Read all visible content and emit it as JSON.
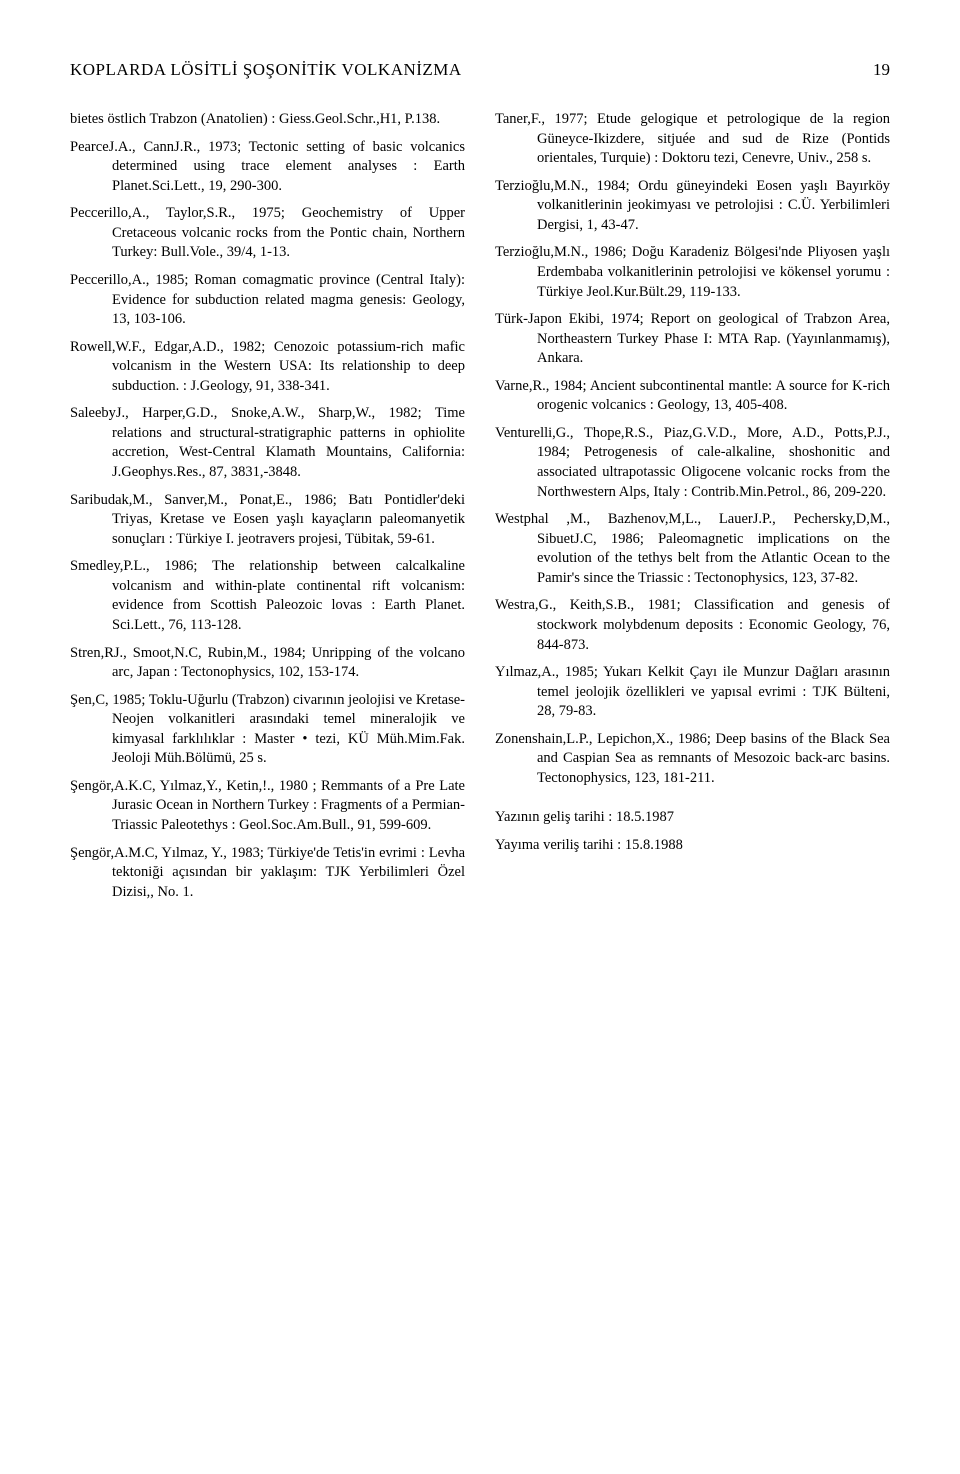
{
  "header": {
    "running_title": "KOPLARDA LÖSİTLİ ŞOŞONİTİK VOLKANİZMA",
    "page_number": "19"
  },
  "left_column": [
    "bietes östlich Trabzon (Anatolien) : Giess.Geol.Schr.,H1, P.138.",
    "PearceJ.A., CannJ.R., 1973; Tectonic setting of basic volcanics determined using trace element analyses : Earth Planet.Sci.Lett., 19, 290-300.",
    "Peccerillo,A., Taylor,S.R., 1975; Geochemistry of Upper Cretaceous volcanic rocks from the Pontic chain, Northern Turkey: Bull.Vole., 39/4, 1-13.",
    "Peccerillo,A., 1985; Roman comagmatic province (Central Italy): Evidence for subduction related magma genesis: Geology, 13, 103-106.",
    "Rowell,W.F., Edgar,A.D., 1982; Cenozoic potassium-rich mafic volcanism in the Western USA: Its relationship to deep subduction. : J.Geology, 91, 338-341.",
    "SaleebyJ., Harper,G.D., Snoke,A.W., Sharp,W., 1982; Time relations and structural-stratigraphic patterns in ophiolite accretion, West-Central Klamath Mountains, California: J.Geophys.Res., 87, 3831,-3848.",
    "Saribudak,M., Sanver,M., Ponat,E., 1986; Batı Pontidler'deki Triyas, Kretase ve Eosen yaşlı kayaçların paleomanyetik sonuçları : Türkiye I. jeotravers projesi, Tübitak, 59-61.",
    "Smedley,P.L., 1986; The relationship between calcalkaline volcanism and within-plate continental rift volcanism: evidence from Scottish Paleozoic lovas : Earth Planet. Sci.Lett., 76, 113-128.",
    "Stren,RJ., Smoot,N.C, Rubin,M., 1984; Unripping of the volcano arc, Japan : Tectonophysics, 102, 153-174.",
    "Şen,C, 1985; Toklu-Uğurlu (Trabzon) civarının jeolojisi ve Kretase-Neojen volkanitleri arasındaki temel mineralojik ve kimyasal farklılıklar : Master • tezi, KÜ Müh.Mim.Fak. Jeoloji Müh.Bölümü, 25 s.",
    "Şengör,A.K.C, Yılmaz,Y., Ketin,!., 1980 ; Remmants of a Pre Late Jurasic Ocean in Northern Turkey : Fragments of a Permian-Triassic Paleotethys : Geol.Soc.Am.Bull., 91, 599-609.",
    "Şengör,A.M.C, Yılmaz, Y., 1983; Türkiye'de Tetis'in evrimi : Levha tektoniği açısından bir yaklaşım: TJK Yerbilimleri Özel Dizisi,, No. 1."
  ],
  "right_column": [
    "Taner,F., 1977; Etude gelogique et petrologique de la region Güneyce-Ikizdere, sitjuée and sud de Rize (Pontids orientales, Turquie) : Doktoru tezi, Cenevre, Univ., 258 s.",
    "Terzioğlu,M.N., 1984; Ordu güneyindeki Eosen yaşlı Bayırköy volkanitlerinin jeokimyası ve petrolojisi : C.Ü. Yerbilimleri Dergisi, 1, 43-47.",
    "Terzioğlu,M.N., 1986; Doğu Karadeniz Bölgesi'nde Pliyosen yaşlı Erdembaba volkanitlerinin petrolojisi ve kökensel yorumu : Türkiye Jeol.Kur.Bült.29, 119-133.",
    "Türk-Japon Ekibi, 1974; Report on geological of Trabzon Area, Northeastern Turkey Phase I: MTA Rap. (Yayınlanmamış), Ankara.",
    "Varne,R., 1984; Ancient subcontinental mantle: A source for K-rich orogenic volcanics : Geology, 13, 405-408.",
    "Venturelli,G., Thope,R.S., Piaz,G.V.D., More, A.D., Potts,P.J., 1984; Petrogenesis of cale-alkaline, shoshonitic and associated ultrapotassic Oligocene volcanic rocks from the Northwestern Alps, Italy : Contrib.Min.Petrol., 86, 209-220.",
    "Westphal ,M., Bazhenov,M,L., LauerJ.P., Pechersky,D,M., SibuetJ.C, 1986; Paleomagnetic implications on the evolution of the tethys belt from the Atlantic Ocean to the Pamir's since the Triassic : Tectonophysics, 123, 37-82.",
    "Westra,G., Keith,S.B., 1981; Classification and genesis of stockwork molybdenum deposits : Economic Geology, 76, 844-873.",
    "Yılmaz,A., 1985; Yukarı Kelkit Çayı ile Munzur Dağları arasının temel jeolojik özellikleri ve yapısal evrimi : TJK Bülteni, 28, 79-83.",
    "Zonenshain,L.P., Lepichon,X., 1986; Deep basins of the Black Sea and Caspian Sea as remnants of Mesozoic back-arc basins. Tectonophysics, 123, 181-211."
  ],
  "closing": [
    "Yazının geliş tarihi : 18.5.1987",
    "Yayıma veriliş tarihi : 15.8.1988"
  ]
}
